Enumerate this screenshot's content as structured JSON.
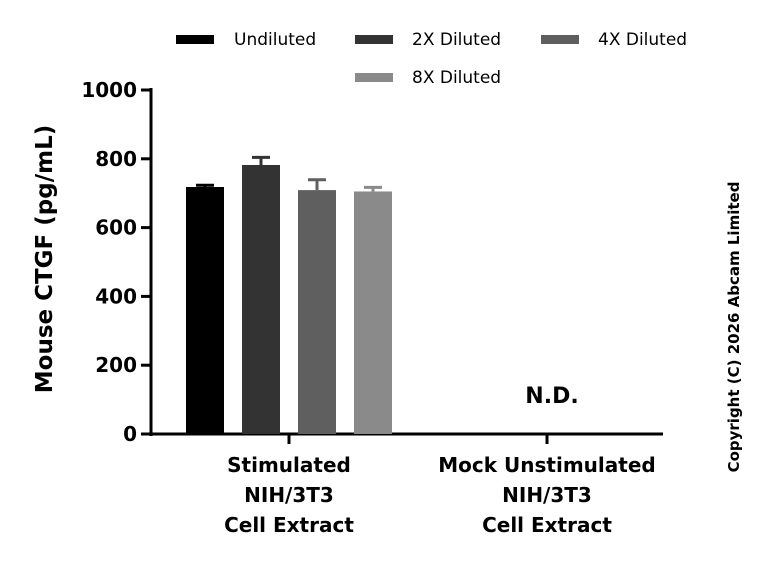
{
  "chart_data": {
    "type": "bar",
    "ylabel": "Mouse CTGF (pg/mL)",
    "xlabel": "",
    "ylim": [
      0,
      1000
    ],
    "yticks": [
      0,
      200,
      400,
      600,
      800,
      1000
    ],
    "categories": [
      [
        "Stimulated",
        "NIH/3T3",
        "Cell Extract"
      ],
      [
        "Mock Unstimulated",
        "NIH/3T3",
        "Cell Extract"
      ]
    ],
    "series": [
      {
        "name": "Undiluted",
        "color": "#000000",
        "values": [
          718,
          null
        ],
        "errors": [
          5,
          null
        ]
      },
      {
        "name": "2X Diluted",
        "color": "#333333",
        "values": [
          782,
          null
        ],
        "errors": [
          22,
          null
        ]
      },
      {
        "name": "4X Diluted",
        "color": "#5f5f5f",
        "values": [
          709,
          null
        ],
        "errors": [
          30,
          null
        ]
      },
      {
        "name": "8X Diluted",
        "color": "#8a8a8a",
        "values": [
          705,
          null
        ],
        "errors": [
          12,
          null
        ]
      }
    ],
    "annotations": [
      {
        "category_index": 1,
        "text": "N.D."
      }
    ],
    "legend": "top",
    "grid": false
  },
  "copyright": "Copyright (C) 2026 Abcam Limited"
}
